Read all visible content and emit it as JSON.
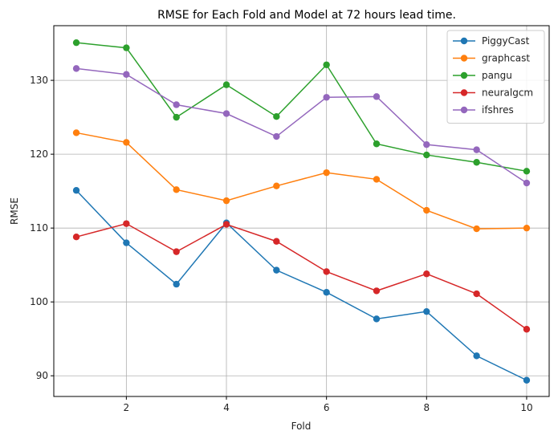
{
  "chart_data": {
    "type": "line",
    "title": "RMSE for Each Fold and Model at 72 hours lead time.",
    "xlabel": "Fold",
    "ylabel": "RMSE",
    "x": [
      1,
      2,
      3,
      4,
      5,
      6,
      7,
      8,
      9,
      10
    ],
    "xlim": [
      0.55,
      10.45
    ],
    "ylim": [
      87.2,
      137.4
    ],
    "xticks": [
      2,
      4,
      6,
      8,
      10
    ],
    "yticks": [
      90,
      100,
      110,
      120,
      130
    ],
    "grid": true,
    "legend_position": "top-right",
    "series": [
      {
        "name": "PiggyCast",
        "color": "#1f77b4",
        "values": [
          115.1,
          108.0,
          102.4,
          110.7,
          104.3,
          101.3,
          97.7,
          98.7,
          92.7,
          89.4
        ]
      },
      {
        "name": "graphcast",
        "color": "#ff7f0e",
        "values": [
          122.9,
          121.6,
          115.2,
          113.7,
          115.7,
          117.5,
          116.6,
          112.4,
          109.9,
          110.0
        ]
      },
      {
        "name": "pangu",
        "color": "#2ca02c",
        "values": [
          135.1,
          134.4,
          125.0,
          129.4,
          125.1,
          132.1,
          121.4,
          119.9,
          118.9,
          117.7
        ]
      },
      {
        "name": "neuralgcm",
        "color": "#d62728",
        "values": [
          108.8,
          110.6,
          106.8,
          110.5,
          108.2,
          104.1,
          101.5,
          103.8,
          101.1,
          96.3
        ]
      },
      {
        "name": "ifshres",
        "color": "#9467bd",
        "values": [
          131.6,
          130.8,
          126.7,
          125.5,
          122.4,
          127.7,
          127.8,
          121.3,
          120.6,
          116.1
        ]
      }
    ]
  }
}
